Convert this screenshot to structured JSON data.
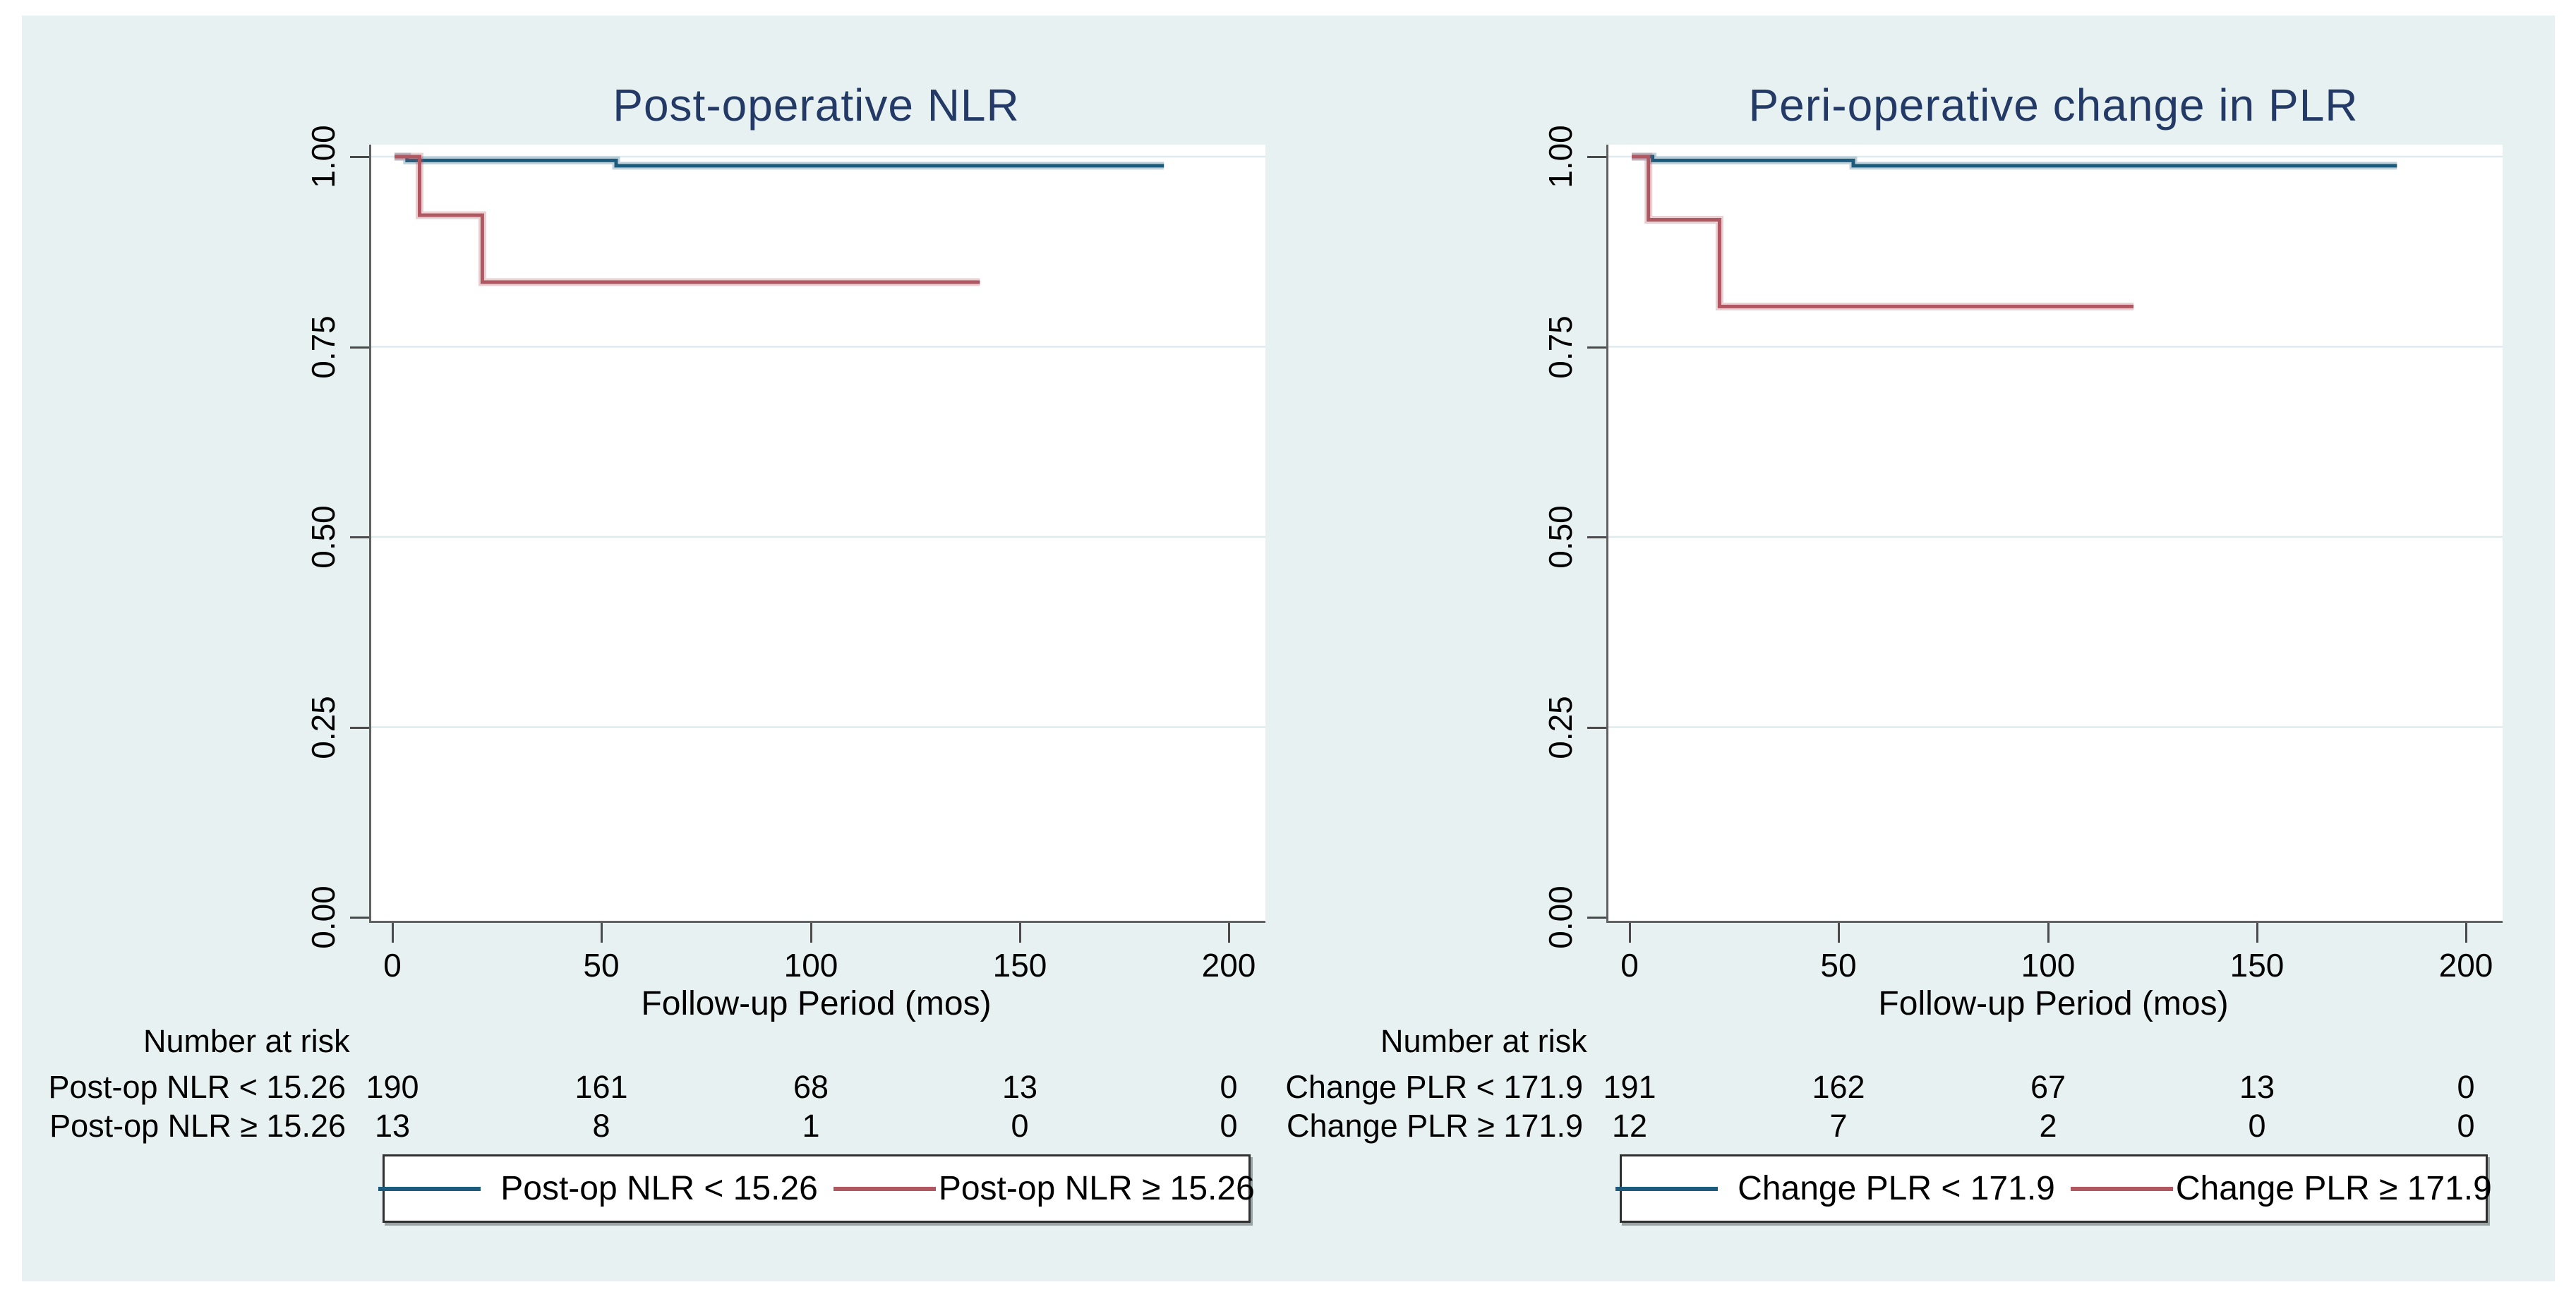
{
  "figure": {
    "background_color": "#e7f1f2",
    "axis_color": "#616161",
    "grid_color": "#dfeaee",
    "title_color": "#243a66",
    "blue": "#1d5b7d",
    "red": "#b15762"
  },
  "chart_data": [
    {
      "type": "line",
      "subtype": "kaplan-meier-step",
      "title": "Post-operative NLR",
      "xlabel": "Follow-up Period (mos)",
      "ylabel": "",
      "xlim": [
        0,
        200
      ],
      "ylim": [
        0.0,
        1.0
      ],
      "x_ticks": [
        0,
        50,
        100,
        150,
        200
      ],
      "y_ticks": [
        "0.00",
        "0.25",
        "0.50",
        "0.75",
        "1.00"
      ],
      "grid": true,
      "legend_position": "bottom",
      "series": [
        {
          "name": "Post-op NLR < 15.26",
          "color": "#1d5b7d",
          "points": [
            [
              0,
              1.0
            ],
            [
              3,
              1.0
            ],
            [
              3,
              0.995
            ],
            [
              53,
              0.995
            ],
            [
              53,
              0.988
            ],
            [
              184,
              0.988
            ]
          ]
        },
        {
          "name": "Post-op NLR ≥ 15.26",
          "color": "#b15762",
          "points": [
            [
              0,
              1.0
            ],
            [
              6,
              1.0
            ],
            [
              6,
              0.923
            ],
            [
              21,
              0.923
            ],
            [
              21,
              0.835
            ],
            [
              140,
              0.835
            ]
          ]
        }
      ],
      "risk_table": {
        "header": "Number at risk",
        "rows": [
          {
            "label": "Post-op NLR < 15.26",
            "values": [
              "190",
              "161",
              "68",
              "13",
              "0"
            ]
          },
          {
            "label": "Post-op NLR ≥ 15.26",
            "values": [
              "13",
              "8",
              "1",
              "0",
              "0"
            ]
          }
        ]
      },
      "legend": [
        "Post-op NLR < 15.26",
        "Post-op NLR ≥ 15.26"
      ]
    },
    {
      "type": "line",
      "subtype": "kaplan-meier-step",
      "title": "Peri-operative change in PLR",
      "xlabel": "Follow-up Period (mos)",
      "ylabel": "",
      "xlim": [
        0,
        200
      ],
      "ylim": [
        0.0,
        1.0
      ],
      "x_ticks": [
        0,
        50,
        100,
        150,
        200
      ],
      "y_ticks": [
        "0.00",
        "0.25",
        "0.50",
        "0.75",
        "1.00"
      ],
      "grid": true,
      "legend_position": "bottom",
      "series": [
        {
          "name": "Change PLR < 171.9",
          "color": "#1d5b7d",
          "points": [
            [
              0,
              1.0
            ],
            [
              5,
              1.0
            ],
            [
              5,
              0.995
            ],
            [
              53,
              0.995
            ],
            [
              53,
              0.988
            ],
            [
              183,
              0.988
            ]
          ]
        },
        {
          "name": "Change PLR ≥ 171.9",
          "color": "#b15762",
          "points": [
            [
              0,
              1.0
            ],
            [
              4,
              1.0
            ],
            [
              4,
              0.917
            ],
            [
              21,
              0.917
            ],
            [
              21,
              0.803
            ],
            [
              120,
              0.803
            ]
          ]
        }
      ],
      "risk_table": {
        "header": "Number at risk",
        "rows": [
          {
            "label": "Change PLR < 171.9",
            "values": [
              "191",
              "162",
              "67",
              "13",
              "0"
            ]
          },
          {
            "label": "Change PLR ≥ 171.9",
            "values": [
              "12",
              "7",
              "2",
              "0",
              "0"
            ]
          }
        ]
      },
      "legend": [
        "Change PLR < 171.9",
        "Change PLR ≥ 171.9"
      ]
    }
  ]
}
